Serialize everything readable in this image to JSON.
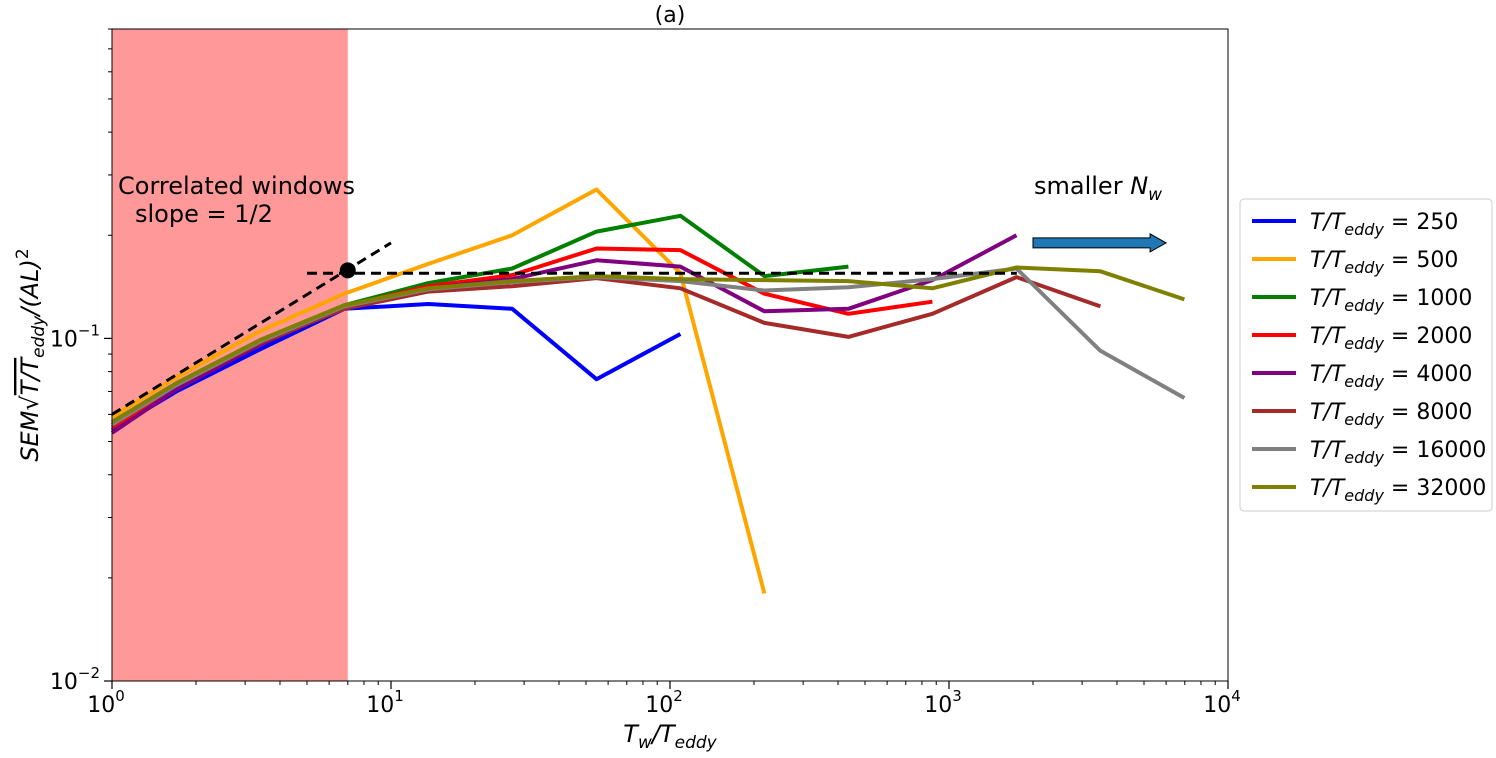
{
  "chart_data": {
    "type": "line",
    "title": "(a)",
    "xlabel": "T_w/T_eddy",
    "ylabel": "SEM√(T/T_eddy)/(AL)²",
    "xscale": "log",
    "yscale": "log",
    "xlim": [
      1,
      10000
    ],
    "ylim": [
      0.01,
      0.8
    ],
    "x_ticks": [
      {
        "value": 1,
        "base": "10",
        "exp": "0"
      },
      {
        "value": 10,
        "base": "10",
        "exp": "1"
      },
      {
        "value": 100,
        "base": "10",
        "exp": "2"
      },
      {
        "value": 1000,
        "base": "10",
        "exp": "3"
      },
      {
        "value": 10000,
        "base": "10",
        "exp": "4"
      }
    ],
    "y_ticks": [
      {
        "value": 0.01,
        "base": "10",
        "exp": "−2"
      },
      {
        "value": 0.1,
        "base": "10",
        "exp": "−1"
      }
    ],
    "shaded_region": {
      "x_from": 1,
      "x_to": 7,
      "color": "#ff9999"
    },
    "reference_lines": [
      {
        "style": "dashed",
        "color": "#000000",
        "x": [
          1,
          10
        ],
        "y": [
          0.06,
          0.19
        ]
      },
      {
        "style": "dashed",
        "color": "#000000",
        "x": [
          5,
          1750
        ],
        "y": [
          0.155,
          0.155
        ]
      }
    ],
    "marker_point": {
      "x": 7,
      "y": 0.158
    },
    "annotations": {
      "correlated_line1": "Correlated windows",
      "correlated_line2": "slope  = 1/2",
      "smaller_prefix": "smaller ",
      "smaller_var": "N",
      "smaller_sub": "w"
    },
    "arrow": {
      "x_from": 2000,
      "x_to": 6000,
      "y": 0.19,
      "color": "#1f77b4"
    },
    "legend_position": "right",
    "legend_prefix": "T/T",
    "legend_sub": "eddy",
    "series": [
      {
        "name": "250",
        "color": "#0000ff",
        "x": [
          1,
          1.7,
          3.4,
          6.8,
          13.6,
          27.2,
          54.5,
          109
        ],
        "y": [
          0.054,
          0.07,
          0.093,
          0.122,
          0.126,
          0.122,
          0.076,
          0.103
        ]
      },
      {
        "name": "500",
        "color": "#ffa500",
        "x": [
          1,
          1.7,
          3.4,
          6.8,
          13.6,
          27.2,
          54.5,
          109,
          218
        ],
        "y": [
          0.059,
          0.077,
          0.105,
          0.135,
          0.165,
          0.2,
          0.272,
          0.155,
          0.018
        ]
      },
      {
        "name": "1000",
        "color": "#008000",
        "x": [
          1,
          1.7,
          3.4,
          6.8,
          13.6,
          27.2,
          54.5,
          109,
          218,
          436
        ],
        "y": [
          0.056,
          0.073,
          0.098,
          0.125,
          0.145,
          0.16,
          0.205,
          0.228,
          0.152,
          0.162
        ]
      },
      {
        "name": "2000",
        "color": "#ff0000",
        "x": [
          1,
          1.7,
          3.4,
          6.8,
          13.6,
          27.2,
          54.5,
          109,
          218,
          436,
          872
        ],
        "y": [
          0.055,
          0.072,
          0.097,
          0.124,
          0.142,
          0.153,
          0.183,
          0.181,
          0.135,
          0.118,
          0.128
        ]
      },
      {
        "name": "4000",
        "color": "#800080",
        "x": [
          1,
          1.7,
          3.4,
          6.8,
          13.6,
          27.2,
          54.5,
          109,
          218,
          436,
          872,
          1745
        ],
        "y": [
          0.053,
          0.071,
          0.096,
          0.123,
          0.14,
          0.149,
          0.169,
          0.162,
          0.12,
          0.122,
          0.148,
          0.2
        ]
      },
      {
        "name": "8000",
        "color": "#a52a2a",
        "x": [
          1,
          1.7,
          3.4,
          6.8,
          13.6,
          27.2,
          54.5,
          109,
          218,
          436,
          872,
          1745,
          3490
        ],
        "y": [
          0.056,
          0.073,
          0.097,
          0.122,
          0.137,
          0.142,
          0.15,
          0.14,
          0.111,
          0.101,
          0.118,
          0.151,
          0.124
        ]
      },
      {
        "name": "16000",
        "color": "#808080",
        "x": [
          1,
          1.7,
          3.4,
          6.8,
          13.6,
          27.2,
          54.5,
          109,
          218,
          436,
          872,
          1745,
          3490,
          6980
        ],
        "y": [
          0.056,
          0.073,
          0.098,
          0.124,
          0.139,
          0.146,
          0.151,
          0.147,
          0.138,
          0.141,
          0.149,
          0.16,
          0.092,
          0.067
        ]
      },
      {
        "name": "32000",
        "color": "#808000",
        "x": [
          1,
          1.7,
          3.4,
          6.8,
          13.6,
          27.2,
          54.5,
          109,
          218,
          436,
          872,
          1745,
          3490,
          6980
        ],
        "y": [
          0.057,
          0.074,
          0.099,
          0.125,
          0.14,
          0.147,
          0.152,
          0.149,
          0.148,
          0.147,
          0.14,
          0.161,
          0.157,
          0.13
        ]
      }
    ]
  }
}
